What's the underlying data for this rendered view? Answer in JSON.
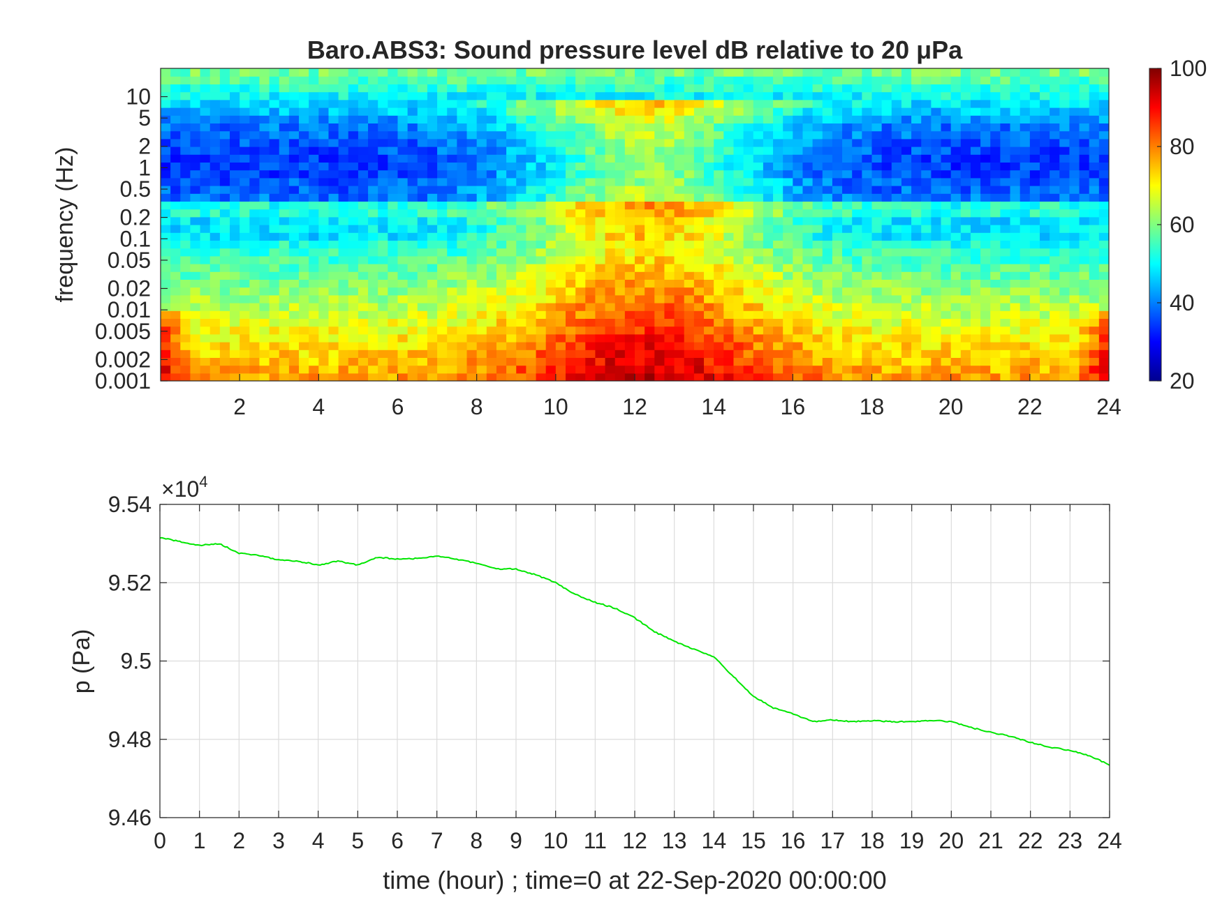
{
  "chart_data": [
    {
      "type": "heatmap",
      "title": "Baro.ABS3: Sound pressure level dB relative to 20 μPa",
      "ylabel": "frequency (Hz)",
      "xlabel": "",
      "xlim": [
        0,
        24
      ],
      "x_ticks": [
        2,
        4,
        6,
        8,
        10,
        12,
        14,
        16,
        18,
        20,
        22,
        24
      ],
      "y_scale": "log",
      "ylim": [
        0.001,
        25
      ],
      "y_ticks": [
        0.001,
        0.002,
        0.005,
        0.01,
        0.02,
        0.05,
        0.1,
        0.2,
        0.5,
        1,
        2,
        5,
        10
      ],
      "y_tick_labels": [
        "0.001",
        "0.002",
        "0.005",
        "0.01",
        "0.02",
        "0.05",
        "0.1",
        "0.2",
        "0.5",
        "1",
        "2",
        "5",
        "10"
      ],
      "colormap": "jet",
      "colorbar": {
        "range": [
          20,
          100
        ],
        "ticks": [
          20,
          40,
          60,
          80,
          100
        ]
      },
      "grid": false
    },
    {
      "type": "line",
      "xlabel": "time (hour) ; time=0 at 22-Sep-2020 00:00:00",
      "ylabel": "p (Pa)",
      "xlim": [
        0,
        24
      ],
      "ylim": [
        94600,
        95400
      ],
      "x_ticks": [
        0,
        1,
        2,
        3,
        4,
        5,
        6,
        7,
        8,
        9,
        10,
        11,
        12,
        13,
        14,
        15,
        16,
        17,
        18,
        19,
        20,
        21,
        22,
        23,
        24
      ],
      "y_ticks": [
        94600,
        94800,
        95000,
        95200,
        95400
      ],
      "y_tick_labels": [
        "9.46",
        "9.48",
        "9.5",
        "9.52",
        "9.54"
      ],
      "exponent_base": "×10",
      "exponent_power": "4",
      "grid": true,
      "line_color": "#00e600",
      "series": [
        {
          "x": [
            0,
            0.5,
            1,
            1.5,
            2,
            2.5,
            3,
            3.5,
            4,
            4.5,
            5,
            5.5,
            6,
            6.5,
            7,
            7.5,
            8,
            8.5,
            9,
            9.5,
            10,
            10.5,
            11,
            11.5,
            12,
            12.5,
            13,
            13.5,
            14,
            14.5,
            15,
            15.5,
            16,
            16.5,
            17,
            17.5,
            18,
            18.5,
            19,
            19.5,
            20,
            20.5,
            21,
            21.5,
            22,
            22.5,
            23,
            23.5,
            24
          ],
          "y": [
            95315,
            95305,
            95295,
            95300,
            95275,
            95270,
            95258,
            95255,
            95245,
            95255,
            95245,
            95265,
            95260,
            95262,
            95268,
            95260,
            95250,
            95235,
            95235,
            95220,
            95200,
            95170,
            95150,
            95135,
            95110,
            95075,
            95050,
            95030,
            95010,
            94960,
            94910,
            94880,
            94865,
            94845,
            94850,
            94845,
            94848,
            94845,
            94845,
            94848,
            94845,
            94830,
            94818,
            94808,
            94792,
            94780,
            94772,
            94758,
            94735
          ]
        }
      ]
    }
  ]
}
